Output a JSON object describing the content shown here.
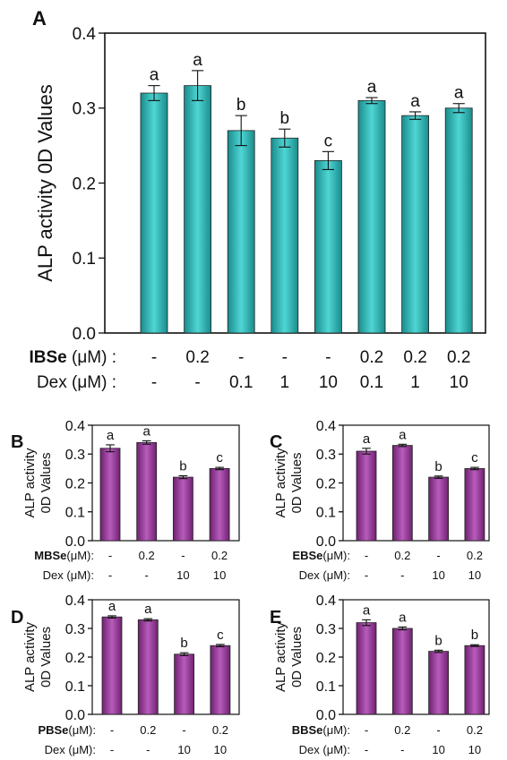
{
  "colors": {
    "teal": "#2ebfbf",
    "purple": "#9b3d9e",
    "axis": "#111111"
  },
  "chart_data": [
    {
      "panel": "A",
      "type": "bar",
      "ylabel": "ALP activity 0D Values",
      "ylim": [
        0,
        0.4
      ],
      "yticks": [
        "0.0",
        "0.1",
        "0.2",
        "0.3",
        "0.4"
      ],
      "values": [
        0.32,
        0.33,
        0.27,
        0.26,
        0.23,
        0.31,
        0.29,
        0.3
      ],
      "errors": [
        0.01,
        0.02,
        0.02,
        0.012,
        0.012,
        0.004,
        0.005,
        0.006
      ],
      "letters": [
        "a",
        "a",
        "b",
        "b",
        "c",
        "a",
        "a",
        "a"
      ],
      "rows": [
        {
          "label_bold": "IBSe",
          "label_rest": " (μM) :",
          "values": [
            "-",
            "0.2",
            "-",
            "-",
            "-",
            "0.2",
            "0.2",
            "0.2"
          ]
        },
        {
          "label_bold": "",
          "label_rest": "Dex (μM) :",
          "values": [
            "-",
            "-",
            "0.1",
            "1",
            "10",
            "0.1",
            "1",
            "10"
          ]
        }
      ],
      "color": "teal",
      "grid": false
    },
    {
      "panel": "B",
      "type": "bar",
      "ylabel": [
        "ALP activity",
        "0D Values"
      ],
      "ylim": [
        0,
        0.4
      ],
      "yticks": [
        "0.0",
        "0.1",
        "0.2",
        "0.3",
        "0.4"
      ],
      "values": [
        0.32,
        0.34,
        0.22,
        0.25
      ],
      "errors": [
        0.012,
        0.006,
        0.005,
        0.004
      ],
      "letters": [
        "a",
        "a",
        "b",
        "c"
      ],
      "rows": [
        {
          "label_bold": "MBSe",
          "label_rest": "(μM):",
          "values": [
            "-",
            "0.2",
            "-",
            "0.2"
          ]
        },
        {
          "label_bold": "",
          "label_rest": "Dex (μM):",
          "values": [
            "-",
            "-",
            "10",
            "10"
          ]
        }
      ],
      "color": "purple",
      "grid": false
    },
    {
      "panel": "C",
      "type": "bar",
      "ylabel": [
        "ALP activity",
        "0D Values"
      ],
      "ylim": [
        0,
        0.4
      ],
      "yticks": [
        "0.0",
        "0.1",
        "0.2",
        "0.3",
        "0.4"
      ],
      "values": [
        0.31,
        0.33,
        0.22,
        0.25
      ],
      "errors": [
        0.01,
        0.004,
        0.004,
        0.004
      ],
      "letters": [
        "a",
        "a",
        "b",
        "c"
      ],
      "rows": [
        {
          "label_bold": "EBSe",
          "label_rest": "(μM):",
          "values": [
            "-",
            "0.2",
            "-",
            "0.2"
          ]
        },
        {
          "label_bold": "",
          "label_rest": "Dex (μM):",
          "values": [
            "-",
            "-",
            "10",
            "10"
          ]
        }
      ],
      "color": "purple",
      "grid": false
    },
    {
      "panel": "D",
      "type": "bar",
      "ylabel": [
        "ALP activity",
        "0D Values"
      ],
      "ylim": [
        0,
        0.4
      ],
      "yticks": [
        "0.0",
        "0.1",
        "0.2",
        "0.3",
        "0.4"
      ],
      "values": [
        0.34,
        0.33,
        0.21,
        0.24
      ],
      "errors": [
        0.004,
        0.004,
        0.005,
        0.004
      ],
      "letters": [
        "a",
        "a",
        "b",
        "c"
      ],
      "rows": [
        {
          "label_bold": "PBSe",
          "label_rest": "(μM):",
          "values": [
            "-",
            "0.2",
            "-",
            "0.2"
          ]
        },
        {
          "label_bold": "",
          "label_rest": "Dex (μM):",
          "values": [
            "-",
            "-",
            "10",
            "10"
          ]
        }
      ],
      "color": "purple",
      "grid": false
    },
    {
      "panel": "E",
      "type": "bar",
      "ylabel": [
        "ALP activity",
        "0D Values"
      ],
      "ylim": [
        0,
        0.4
      ],
      "yticks": [
        "0.0",
        "0.1",
        "0.2",
        "0.3",
        "0.4"
      ],
      "values": [
        0.32,
        0.3,
        0.22,
        0.24
      ],
      "errors": [
        0.01,
        0.005,
        0.004,
        0.003
      ],
      "letters": [
        "a",
        "a",
        "b",
        "b"
      ],
      "rows": [
        {
          "label_bold": "BBSe",
          "label_rest": "(μM):",
          "values": [
            "-",
            "0.2",
            "-",
            "0.2"
          ]
        },
        {
          "label_bold": "",
          "label_rest": "Dex (μM):",
          "values": [
            "-",
            "-",
            "10",
            "10"
          ]
        }
      ],
      "color": "purple",
      "grid": false
    }
  ]
}
